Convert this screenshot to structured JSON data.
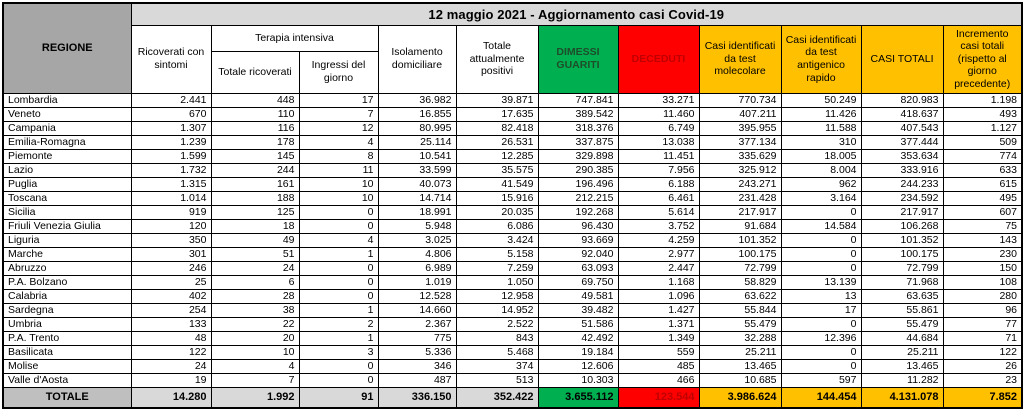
{
  "chart_data": {
    "type": "table",
    "title": "12 maggio 2021 - Aggiornamento casi Covid-19",
    "corner_header": "REGIONE",
    "group_header": "Terapia intensiva",
    "columns": [
      {
        "key": "ricoverati_con_sintomi",
        "label": "Ricoverati con sintomi",
        "style": "plain"
      },
      {
        "key": "ti_totale_ricoverati",
        "label": "Totale ricoverati",
        "style": "plain",
        "group": "Terapia intensiva"
      },
      {
        "key": "ti_ingressi_del_giorno",
        "label": "Ingressi del giorno",
        "style": "plain",
        "group": "Terapia intensiva"
      },
      {
        "key": "isolamento_domiciliare",
        "label": "Isolamento domiciliare",
        "style": "plain"
      },
      {
        "key": "totale_attualmente_positivi",
        "label": "Totale attualmente positivi",
        "style": "plain"
      },
      {
        "key": "dimessi_guariti",
        "label": "DIMESSI GUARITI",
        "style": "green"
      },
      {
        "key": "deceduti",
        "label": "DECEDUTI",
        "style": "red"
      },
      {
        "key": "casi_test_molecolare",
        "label": "Casi identificati da test molecolare",
        "style": "amber"
      },
      {
        "key": "casi_test_antigenico",
        "label": "Casi identificati da test antigenico rapido",
        "style": "amber"
      },
      {
        "key": "casi_totali",
        "label": "CASI TOTALI",
        "style": "amber"
      },
      {
        "key": "incremento_casi",
        "label": "Incremento casi totali (rispetto al giorno precedente)",
        "style": "amber"
      }
    ],
    "rows": [
      {
        "region": "Lombardia",
        "values": [
          "2.441",
          "448",
          "17",
          "36.982",
          "39.871",
          "747.841",
          "33.271",
          "770.734",
          "50.249",
          "820.983",
          "1.198"
        ]
      },
      {
        "region": "Veneto",
        "values": [
          "670",
          "110",
          "7",
          "16.855",
          "17.635",
          "389.542",
          "11.460",
          "407.211",
          "11.426",
          "418.637",
          "493"
        ]
      },
      {
        "region": "Campania",
        "values": [
          "1.307",
          "116",
          "12",
          "80.995",
          "82.418",
          "318.376",
          "6.749",
          "395.955",
          "11.588",
          "407.543",
          "1.127"
        ]
      },
      {
        "region": "Emilia-Romagna",
        "values": [
          "1.239",
          "178",
          "4",
          "25.114",
          "26.531",
          "337.875",
          "13.038",
          "377.134",
          "310",
          "377.444",
          "509"
        ]
      },
      {
        "region": "Piemonte",
        "values": [
          "1.599",
          "145",
          "8",
          "10.541",
          "12.285",
          "329.898",
          "11.451",
          "335.629",
          "18.005",
          "353.634",
          "774"
        ]
      },
      {
        "region": "Lazio",
        "values": [
          "1.732",
          "244",
          "11",
          "33.599",
          "35.575",
          "290.385",
          "7.956",
          "325.912",
          "8.004",
          "333.916",
          "633"
        ]
      },
      {
        "region": "Puglia",
        "values": [
          "1.315",
          "161",
          "10",
          "40.073",
          "41.549",
          "196.496",
          "6.188",
          "243.271",
          "962",
          "244.233",
          "615"
        ]
      },
      {
        "region": "Toscana",
        "values": [
          "1.014",
          "188",
          "10",
          "14.714",
          "15.916",
          "212.215",
          "6.461",
          "231.428",
          "3.164",
          "234.592",
          "495"
        ]
      },
      {
        "region": "Sicilia",
        "values": [
          "919",
          "125",
          "0",
          "18.991",
          "20.035",
          "192.268",
          "5.614",
          "217.917",
          "0",
          "217.917",
          "607"
        ]
      },
      {
        "region": "Friuli Venezia Giulia",
        "values": [
          "120",
          "18",
          "0",
          "5.948",
          "6.086",
          "96.430",
          "3.752",
          "91.684",
          "14.584",
          "106.268",
          "75"
        ]
      },
      {
        "region": "Liguria",
        "values": [
          "350",
          "49",
          "4",
          "3.025",
          "3.424",
          "93.669",
          "4.259",
          "101.352",
          "0",
          "101.352",
          "143"
        ]
      },
      {
        "region": "Marche",
        "values": [
          "301",
          "51",
          "1",
          "4.806",
          "5.158",
          "92.040",
          "2.977",
          "100.175",
          "0",
          "100.175",
          "230"
        ]
      },
      {
        "region": "Abruzzo",
        "values": [
          "246",
          "24",
          "0",
          "6.989",
          "7.259",
          "63.093",
          "2.447",
          "72.799",
          "0",
          "72.799",
          "150"
        ]
      },
      {
        "region": "P.A. Bolzano",
        "values": [
          "25",
          "6",
          "0",
          "1.019",
          "1.050",
          "69.750",
          "1.168",
          "58.829",
          "13.139",
          "71.968",
          "108"
        ]
      },
      {
        "region": "Calabria",
        "values": [
          "402",
          "28",
          "0",
          "12.528",
          "12.958",
          "49.581",
          "1.096",
          "63.622",
          "13",
          "63.635",
          "280"
        ]
      },
      {
        "region": "Sardegna",
        "values": [
          "254",
          "38",
          "1",
          "14.660",
          "14.952",
          "39.482",
          "1.427",
          "55.844",
          "17",
          "55.861",
          "96"
        ]
      },
      {
        "region": "Umbria",
        "values": [
          "133",
          "22",
          "2",
          "2.367",
          "2.522",
          "51.586",
          "1.371",
          "55.479",
          "0",
          "55.479",
          "77"
        ]
      },
      {
        "region": "P.A. Trento",
        "values": [
          "48",
          "20",
          "1",
          "775",
          "843",
          "42.492",
          "1.349",
          "32.288",
          "12.396",
          "44.684",
          "71"
        ]
      },
      {
        "region": "Basilicata",
        "values": [
          "122",
          "10",
          "3",
          "5.336",
          "5.468",
          "19.184",
          "559",
          "25.211",
          "0",
          "25.211",
          "122"
        ]
      },
      {
        "region": "Molise",
        "values": [
          "24",
          "4",
          "0",
          "346",
          "374",
          "12.606",
          "485",
          "13.465",
          "0",
          "13.465",
          "26"
        ]
      },
      {
        "region": "Valle d'Aosta",
        "values": [
          "19",
          "7",
          "0",
          "487",
          "513",
          "10.303",
          "466",
          "10.685",
          "597",
          "11.282",
          "23"
        ]
      }
    ],
    "total_row": {
      "region": "TOTALE",
      "values": [
        "14.280",
        "1.992",
        "91",
        "336.150",
        "352.422",
        "3.655.112",
        "123.544",
        "3.986.624",
        "144.454",
        "4.131.078",
        "7.852"
      ]
    }
  },
  "colors": {
    "green": "#00b050",
    "red": "#ff0000",
    "amber": "#ffc000",
    "corner_gray": "#a6a6a6",
    "title_gray": "#d9d9d9",
    "total_label_gray": "#bfbfbf",
    "total_value_gray": "#d9d9d9",
    "red_text": "#c00000",
    "green_header_text": "#1e4d2b"
  }
}
